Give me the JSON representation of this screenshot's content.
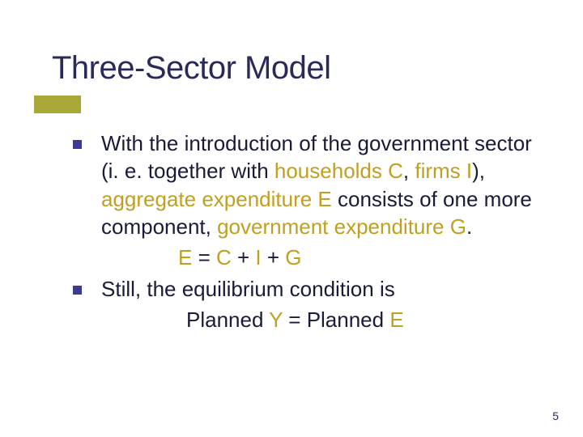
{
  "slide": {
    "title": "Three-Sector Model",
    "title_color": "#2a2a5a",
    "accent_color": "#a8a838",
    "bullet_color": "#3b3b8f",
    "highlight_color": "#c0a020",
    "body_color": "#1a1a3a",
    "background": "#ffffff",
    "font_family": "Verdana",
    "title_fontsize": 40,
    "body_fontsize": 26,
    "bullets": [
      {
        "pre1": "With the introduction of the government sector (i. e. together with ",
        "hl1": "households C",
        "mid1": ", ",
        "hl2": "firms I",
        "mid2": "), ",
        "hl3": "aggregate expenditure E",
        "mid3": " consists of one more component, ",
        "hl4": "government expenditure G",
        "post": "."
      },
      {
        "text": "Still, the equilibrium condition is"
      }
    ],
    "equation1": {
      "e": "E",
      "eq": " = ",
      "c": "C",
      "plus1": " + ",
      "i": "I",
      "plus2": " + ",
      "g": "G"
    },
    "equation2": {
      "p1": "Planned ",
      "y": "Y",
      "eq": " = ",
      "p2": "Planned ",
      "e": "E"
    },
    "page_number": "5"
  }
}
